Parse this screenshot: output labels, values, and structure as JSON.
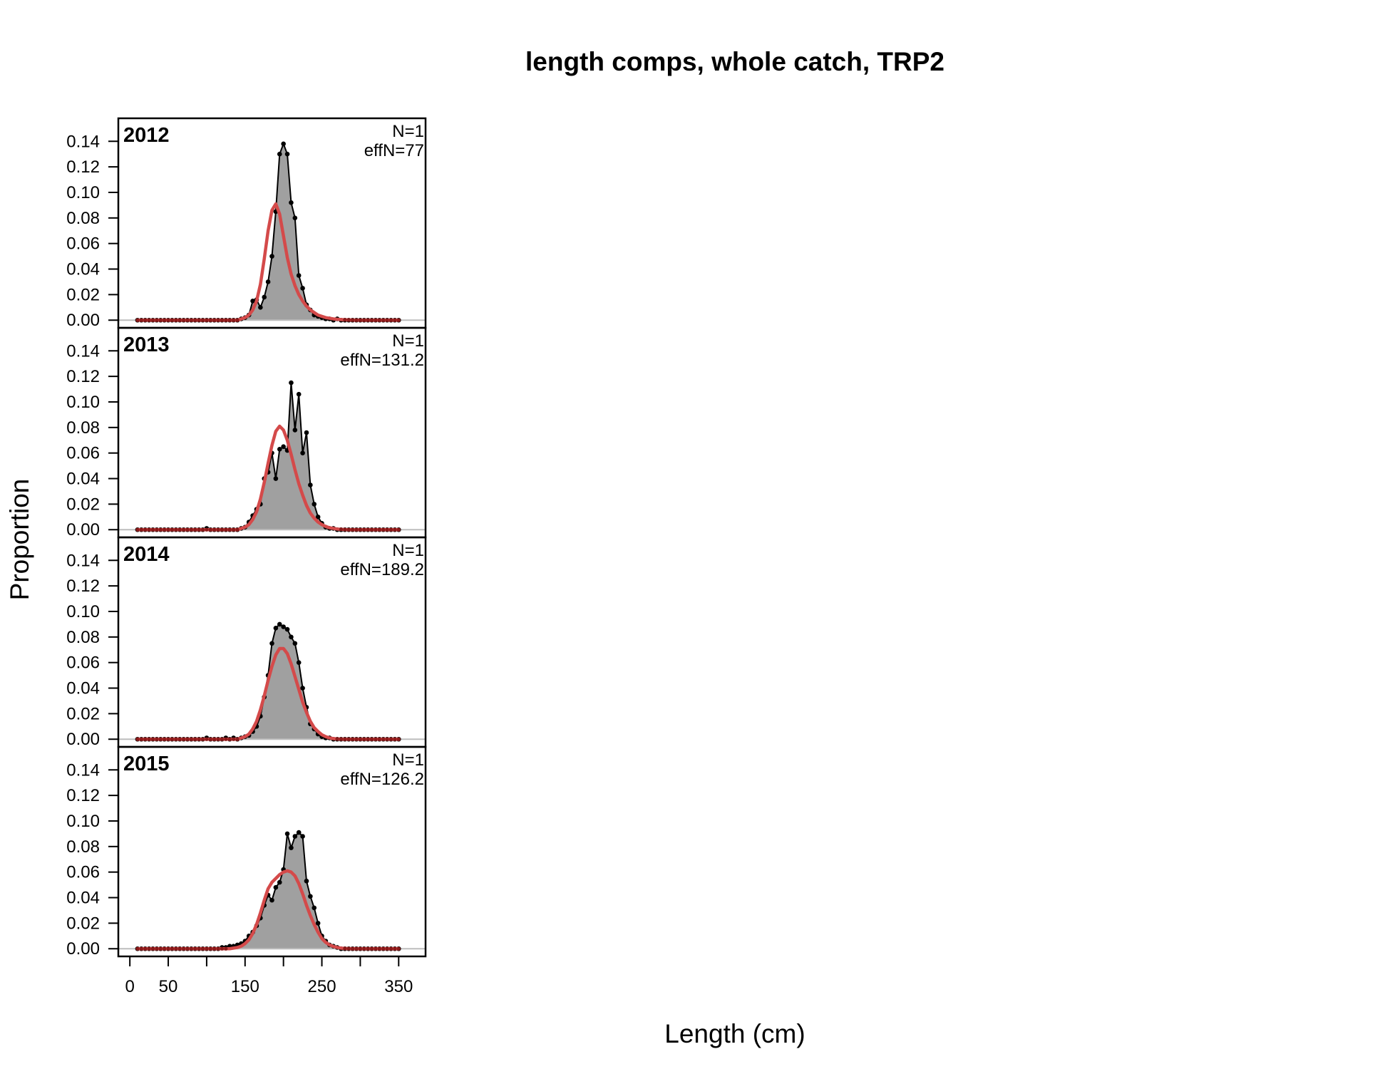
{
  "chart_data": {
    "type": "area",
    "title": "length comps, whole catch, TRP2",
    "xlabel": "Length (cm)",
    "ylabel": "Proportion",
    "xlim": [
      -15,
      385
    ],
    "ylim": [
      -0.006,
      0.158
    ],
    "xticks": [
      0,
      50,
      100,
      150,
      200,
      250,
      300,
      350
    ],
    "xtick_labels": [
      "0",
      "50",
      "",
      "150",
      "",
      "250",
      "",
      "350"
    ],
    "yticks": [
      0,
      0.02,
      0.04,
      0.06,
      0.08,
      0.1,
      0.12,
      0.14
    ],
    "ytick_labels": [
      "0.00",
      "0.02",
      "0.04",
      "0.06",
      "0.08",
      "0.10",
      "0.12",
      "0.14"
    ],
    "colors": {
      "observed_fill": "#a0a0a0",
      "observed_line": "#000000",
      "expected_line": "#d44a4a",
      "expected_point": "#8b1a1a",
      "zero_line": "#bdbdbd"
    },
    "panels": [
      {
        "year": "2012",
        "n_label": "N=1",
        "effn_label": "effN=77",
        "x": [
          10,
          15,
          20,
          25,
          30,
          35,
          40,
          45,
          50,
          55,
          60,
          65,
          70,
          75,
          80,
          85,
          90,
          95,
          100,
          105,
          110,
          115,
          120,
          125,
          130,
          135,
          140,
          145,
          150,
          155,
          160,
          165,
          170,
          175,
          180,
          185,
          190,
          195,
          200,
          205,
          210,
          215,
          220,
          225,
          230,
          235,
          240,
          245,
          250,
          255,
          260,
          265,
          270,
          275,
          280,
          285,
          290,
          295,
          300,
          305,
          310,
          315,
          320,
          325,
          330,
          335,
          340,
          345,
          350
        ],
        "observed": [
          0,
          0,
          0,
          0,
          0,
          0,
          0,
          0,
          0,
          0,
          0,
          0,
          0,
          0,
          0,
          0,
          0,
          0,
          0,
          0,
          0,
          0,
          0,
          0,
          0,
          0,
          0,
          0.001,
          0.002,
          0.004,
          0.015,
          0.016,
          0.01,
          0.018,
          0.03,
          0.05,
          0.085,
          0.13,
          0.138,
          0.13,
          0.092,
          0.08,
          0.035,
          0.025,
          0.012,
          0.008,
          0.004,
          0.003,
          0.002,
          0.001,
          0.001,
          0,
          0.001,
          0,
          0,
          0,
          0,
          0,
          0,
          0,
          0,
          0,
          0,
          0,
          0,
          0,
          0,
          0,
          0
        ],
        "expected": [
          0,
          0,
          0,
          0,
          0,
          0,
          0,
          0,
          0,
          0,
          0,
          0,
          0,
          0,
          0,
          0,
          0,
          0,
          0,
          0,
          0,
          0,
          0,
          0,
          0,
          0,
          0,
          0.001,
          0.002,
          0.004,
          0.008,
          0.015,
          0.028,
          0.048,
          0.07,
          0.086,
          0.091,
          0.083,
          0.066,
          0.049,
          0.036,
          0.027,
          0.02,
          0.015,
          0.011,
          0.008,
          0.006,
          0.004,
          0.003,
          0.002,
          0.0015,
          0.001,
          0.0007,
          0.0005,
          0.0003,
          0.0002,
          0.0001,
          0,
          0,
          0,
          0,
          0,
          0,
          0,
          0,
          0,
          0,
          0,
          0
        ]
      },
      {
        "year": "2013",
        "n_label": "N=1",
        "effn_label": "effN=131.2",
        "x": [
          10,
          15,
          20,
          25,
          30,
          35,
          40,
          45,
          50,
          55,
          60,
          65,
          70,
          75,
          80,
          85,
          90,
          95,
          100,
          105,
          110,
          115,
          120,
          125,
          130,
          135,
          140,
          145,
          150,
          155,
          160,
          165,
          170,
          175,
          180,
          185,
          190,
          195,
          200,
          205,
          210,
          215,
          220,
          225,
          230,
          235,
          240,
          245,
          250,
          255,
          260,
          265,
          270,
          275,
          280,
          285,
          290,
          295,
          300,
          305,
          310,
          315,
          320,
          325,
          330,
          335,
          340,
          345,
          350
        ],
        "observed": [
          0,
          0,
          0,
          0,
          0,
          0,
          0,
          0,
          0,
          0,
          0,
          0,
          0,
          0,
          0,
          0,
          0,
          0,
          0.001,
          0,
          0,
          0,
          0,
          0,
          0,
          0,
          0,
          0.001,
          0.002,
          0.006,
          0.011,
          0.016,
          0.02,
          0.04,
          0.045,
          0.06,
          0.04,
          0.063,
          0.065,
          0.062,
          0.115,
          0.078,
          0.106,
          0.06,
          0.076,
          0.035,
          0.02,
          0.01,
          0.005,
          0.002,
          0.001,
          0.001,
          0,
          0,
          0,
          0,
          0,
          0,
          0,
          0,
          0,
          0,
          0,
          0,
          0,
          0,
          0,
          0,
          0
        ],
        "expected": [
          0,
          0,
          0,
          0,
          0,
          0,
          0,
          0,
          0,
          0,
          0,
          0,
          0,
          0,
          0,
          0,
          0,
          0,
          0,
          0,
          0,
          0,
          0,
          0,
          0,
          0,
          0,
          0.001,
          0.002,
          0.004,
          0.008,
          0.014,
          0.024,
          0.037,
          0.052,
          0.066,
          0.077,
          0.081,
          0.078,
          0.07,
          0.059,
          0.047,
          0.036,
          0.027,
          0.019,
          0.013,
          0.009,
          0.006,
          0.004,
          0.0025,
          0.0015,
          0.001,
          0.0005,
          0.0003,
          0.0001,
          0,
          0,
          0,
          0,
          0,
          0,
          0,
          0,
          0,
          0,
          0,
          0,
          0,
          0
        ]
      },
      {
        "year": "2014",
        "n_label": "N=1",
        "effn_label": "effN=189.2",
        "x": [
          10,
          15,
          20,
          25,
          30,
          35,
          40,
          45,
          50,
          55,
          60,
          65,
          70,
          75,
          80,
          85,
          90,
          95,
          100,
          105,
          110,
          115,
          120,
          125,
          130,
          135,
          140,
          145,
          150,
          155,
          160,
          165,
          170,
          175,
          180,
          185,
          190,
          195,
          200,
          205,
          210,
          215,
          220,
          225,
          230,
          235,
          240,
          245,
          250,
          255,
          260,
          265,
          270,
          275,
          280,
          285,
          290,
          295,
          300,
          305,
          310,
          315,
          320,
          325,
          330,
          335,
          340,
          345,
          350
        ],
        "observed": [
          0,
          0,
          0,
          0,
          0,
          0,
          0,
          0,
          0,
          0,
          0,
          0,
          0,
          0,
          0,
          0,
          0,
          0,
          0.001,
          0,
          0,
          0,
          0,
          0.001,
          0,
          0.001,
          0,
          0.001,
          0.002,
          0.003,
          0.006,
          0.01,
          0.018,
          0.033,
          0.05,
          0.075,
          0.087,
          0.09,
          0.088,
          0.086,
          0.08,
          0.075,
          0.06,
          0.04,
          0.025,
          0.012,
          0.008,
          0.004,
          0.002,
          0.001,
          0.001,
          0,
          0,
          0,
          0,
          0,
          0,
          0,
          0,
          0,
          0,
          0,
          0,
          0,
          0,
          0,
          0,
          0,
          0
        ],
        "expected": [
          0,
          0,
          0,
          0,
          0,
          0,
          0,
          0,
          0,
          0,
          0,
          0,
          0,
          0,
          0,
          0,
          0,
          0,
          0,
          0,
          0,
          0,
          0,
          0,
          0,
          0,
          0,
          0.001,
          0.002,
          0.004,
          0.008,
          0.014,
          0.023,
          0.034,
          0.046,
          0.057,
          0.066,
          0.071,
          0.071,
          0.067,
          0.059,
          0.049,
          0.039,
          0.029,
          0.021,
          0.014,
          0.009,
          0.006,
          0.0035,
          0.002,
          0.001,
          0.0005,
          0.0002,
          0.0001,
          0,
          0,
          0,
          0,
          0,
          0,
          0,
          0,
          0,
          0,
          0,
          0,
          0,
          0,
          0
        ]
      },
      {
        "year": "2015",
        "n_label": "N=1",
        "effn_label": "effN=126.2",
        "x": [
          10,
          15,
          20,
          25,
          30,
          35,
          40,
          45,
          50,
          55,
          60,
          65,
          70,
          75,
          80,
          85,
          90,
          95,
          100,
          105,
          110,
          115,
          120,
          125,
          130,
          135,
          140,
          145,
          150,
          155,
          160,
          165,
          170,
          175,
          180,
          185,
          190,
          195,
          200,
          205,
          210,
          215,
          220,
          225,
          230,
          235,
          240,
          245,
          250,
          255,
          260,
          265,
          270,
          275,
          280,
          285,
          290,
          295,
          300,
          305,
          310,
          315,
          320,
          325,
          330,
          335,
          340,
          345,
          350
        ],
        "observed": [
          0,
          0,
          0,
          0,
          0,
          0,
          0,
          0,
          0,
          0,
          0,
          0,
          0,
          0,
          0,
          0,
          0,
          0,
          0,
          0,
          0,
          0,
          0.001,
          0.001,
          0.002,
          0.002,
          0.003,
          0.004,
          0.006,
          0.01,
          0.013,
          0.018,
          0.024,
          0.034,
          0.042,
          0.038,
          0.048,
          0.052,
          0.062,
          0.09,
          0.079,
          0.088,
          0.091,
          0.088,
          0.053,
          0.041,
          0.032,
          0.02,
          0.01,
          0.006,
          0.003,
          0.002,
          0.001,
          0,
          0,
          0,
          0,
          0,
          0,
          0,
          0,
          0,
          0,
          0,
          0,
          0,
          0,
          0,
          0
        ],
        "expected": [
          0,
          0,
          0,
          0,
          0,
          0,
          0,
          0,
          0,
          0,
          0,
          0,
          0,
          0,
          0,
          0,
          0,
          0,
          0,
          0,
          0,
          0,
          0,
          0,
          0,
          0.0005,
          0.001,
          0.002,
          0.004,
          0.007,
          0.012,
          0.019,
          0.028,
          0.038,
          0.047,
          0.052,
          0.055,
          0.058,
          0.06,
          0.061,
          0.06,
          0.057,
          0.051,
          0.043,
          0.034,
          0.026,
          0.019,
          0.013,
          0.008,
          0.005,
          0.003,
          0.0018,
          0.001,
          0.0005,
          0.0002,
          0.0001,
          0,
          0,
          0,
          0,
          0,
          0,
          0,
          0,
          0,
          0,
          0,
          0,
          0
        ]
      }
    ]
  }
}
